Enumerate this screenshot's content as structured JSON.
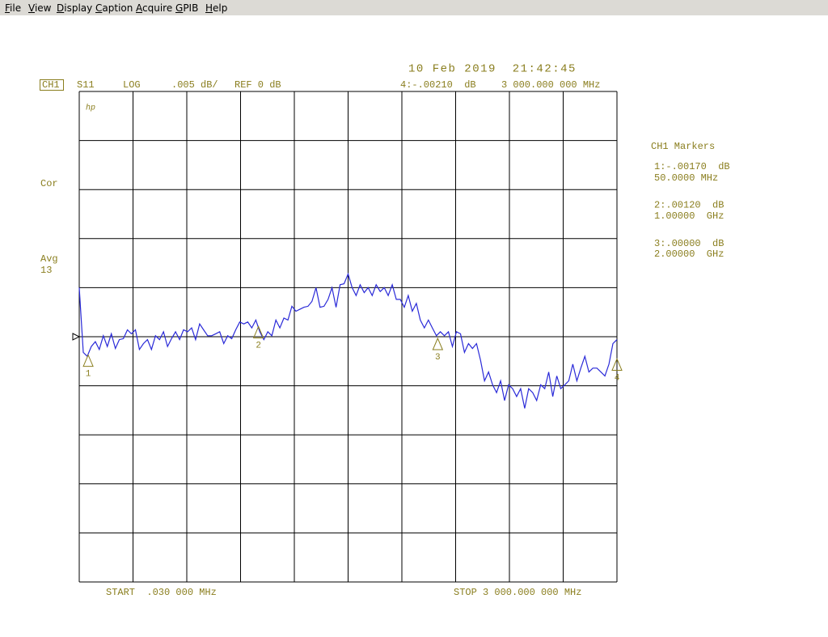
{
  "menu": [
    "File",
    "View",
    "Display",
    "Caption",
    "Acquire",
    "GPIB",
    "Help"
  ],
  "timestamp": "10 Feb 2019  21:42:45",
  "channel": "CH1",
  "parameter": "S11",
  "format": "LOG",
  "scale": ".005 dB/",
  "reference": "REF 0 dB",
  "logo": "hp",
  "status": [
    "Cor",
    "Avg",
    "13"
  ],
  "markers_title": "CH1 Markers",
  "start": "START  .030 000 MHz",
  "stop": "STOP 3 000.000 000 MHz",
  "chart_data": {
    "type": "line",
    "xlim": [
      0.03,
      3000
    ],
    "ylim": [
      -0.025,
      0.025
    ],
    "grid": true,
    "color": "#2a2ad8",
    "values": [
      0.005,
      -0.0016,
      -0.002,
      -0.001,
      -0.0005,
      -0.0013,
      0.0001,
      -0.001,
      0.0003,
      -0.0012,
      -0.0003,
      -0.0002,
      0.0007,
      0.0003,
      0.0007,
      -0.0013,
      -0.0007,
      -0.0003,
      -0.0013,
      0.0001,
      -0.0003,
      0.0005,
      -0.001,
      -0.0002,
      0.0005,
      -0.0003,
      0.0007,
      0.0005,
      0.0009,
      -0.0003,
      0.0013,
      0.0007,
      0.0001,
      0.0001,
      0.0003,
      0.0005,
      -0.0007,
      0.0001,
      -0.0002,
      0.0007,
      0.0015,
      0.0013,
      0.0015,
      0.0009,
      0.0017,
      0.0005,
      -0.0003,
      0.0005,
      0.0001,
      0.0017,
      0.0009,
      0.0019,
      0.0017,
      0.0031,
      0.0026,
      0.0028,
      0.003,
      0.0031,
      0.0036,
      0.005,
      0.003,
      0.0031,
      0.0038,
      0.005,
      0.003,
      0.0053,
      0.0054,
      0.0064,
      0.005,
      0.0042,
      0.0053,
      0.0045,
      0.005,
      0.0042,
      0.0053,
      0.0046,
      0.005,
      0.0042,
      0.0053,
      0.0038,
      0.0038,
      0.003,
      0.0042,
      0.0026,
      0.0034,
      0.0017,
      0.0009,
      0.0017,
      0.0009,
      0.0001,
      0.0005,
      0.0001,
      0.0005,
      -0.001,
      0.0005,
      0.0003,
      -0.0016,
      -0.0007,
      -0.0012,
      -0.0007,
      -0.0024,
      -0.0045,
      -0.0036,
      -0.0049,
      -0.0057,
      -0.0045,
      -0.0065,
      -0.0049,
      -0.0053,
      -0.0061,
      -0.0053,
      -0.0073,
      -0.0053,
      -0.0057,
      -0.0065,
      -0.0049,
      -0.0053,
      -0.0036,
      -0.0061,
      -0.004,
      -0.0053,
      -0.0049,
      -0.0045,
      -0.0028,
      -0.0045,
      -0.0032,
      -0.002,
      -0.0036,
      -0.0032,
      -0.0032,
      -0.0036,
      -0.004,
      -0.0028,
      -0.0007,
      -0.0003
    ],
    "markers": [
      {
        "id": "1",
        "value": -0.0017,
        "label": "1:-.00170  dB",
        "freq": 50,
        "freq_label": "50.0000 MHz"
      },
      {
        "id": "2",
        "value": 0.0012,
        "label": "2:.00120  dB",
        "freq": 1000,
        "freq_label": "1.00000  GHz"
      },
      {
        "id": "3",
        "value": 0,
        "label": "3:.00000  dB",
        "freq": 2000,
        "freq_label": "2.00000  GHz"
      },
      {
        "id": "4",
        "value": -0.0021,
        "label": "4:-.00210  dB",
        "freq": 3000,
        "freq_label": "3 000.000 000 MHz"
      }
    ]
  }
}
